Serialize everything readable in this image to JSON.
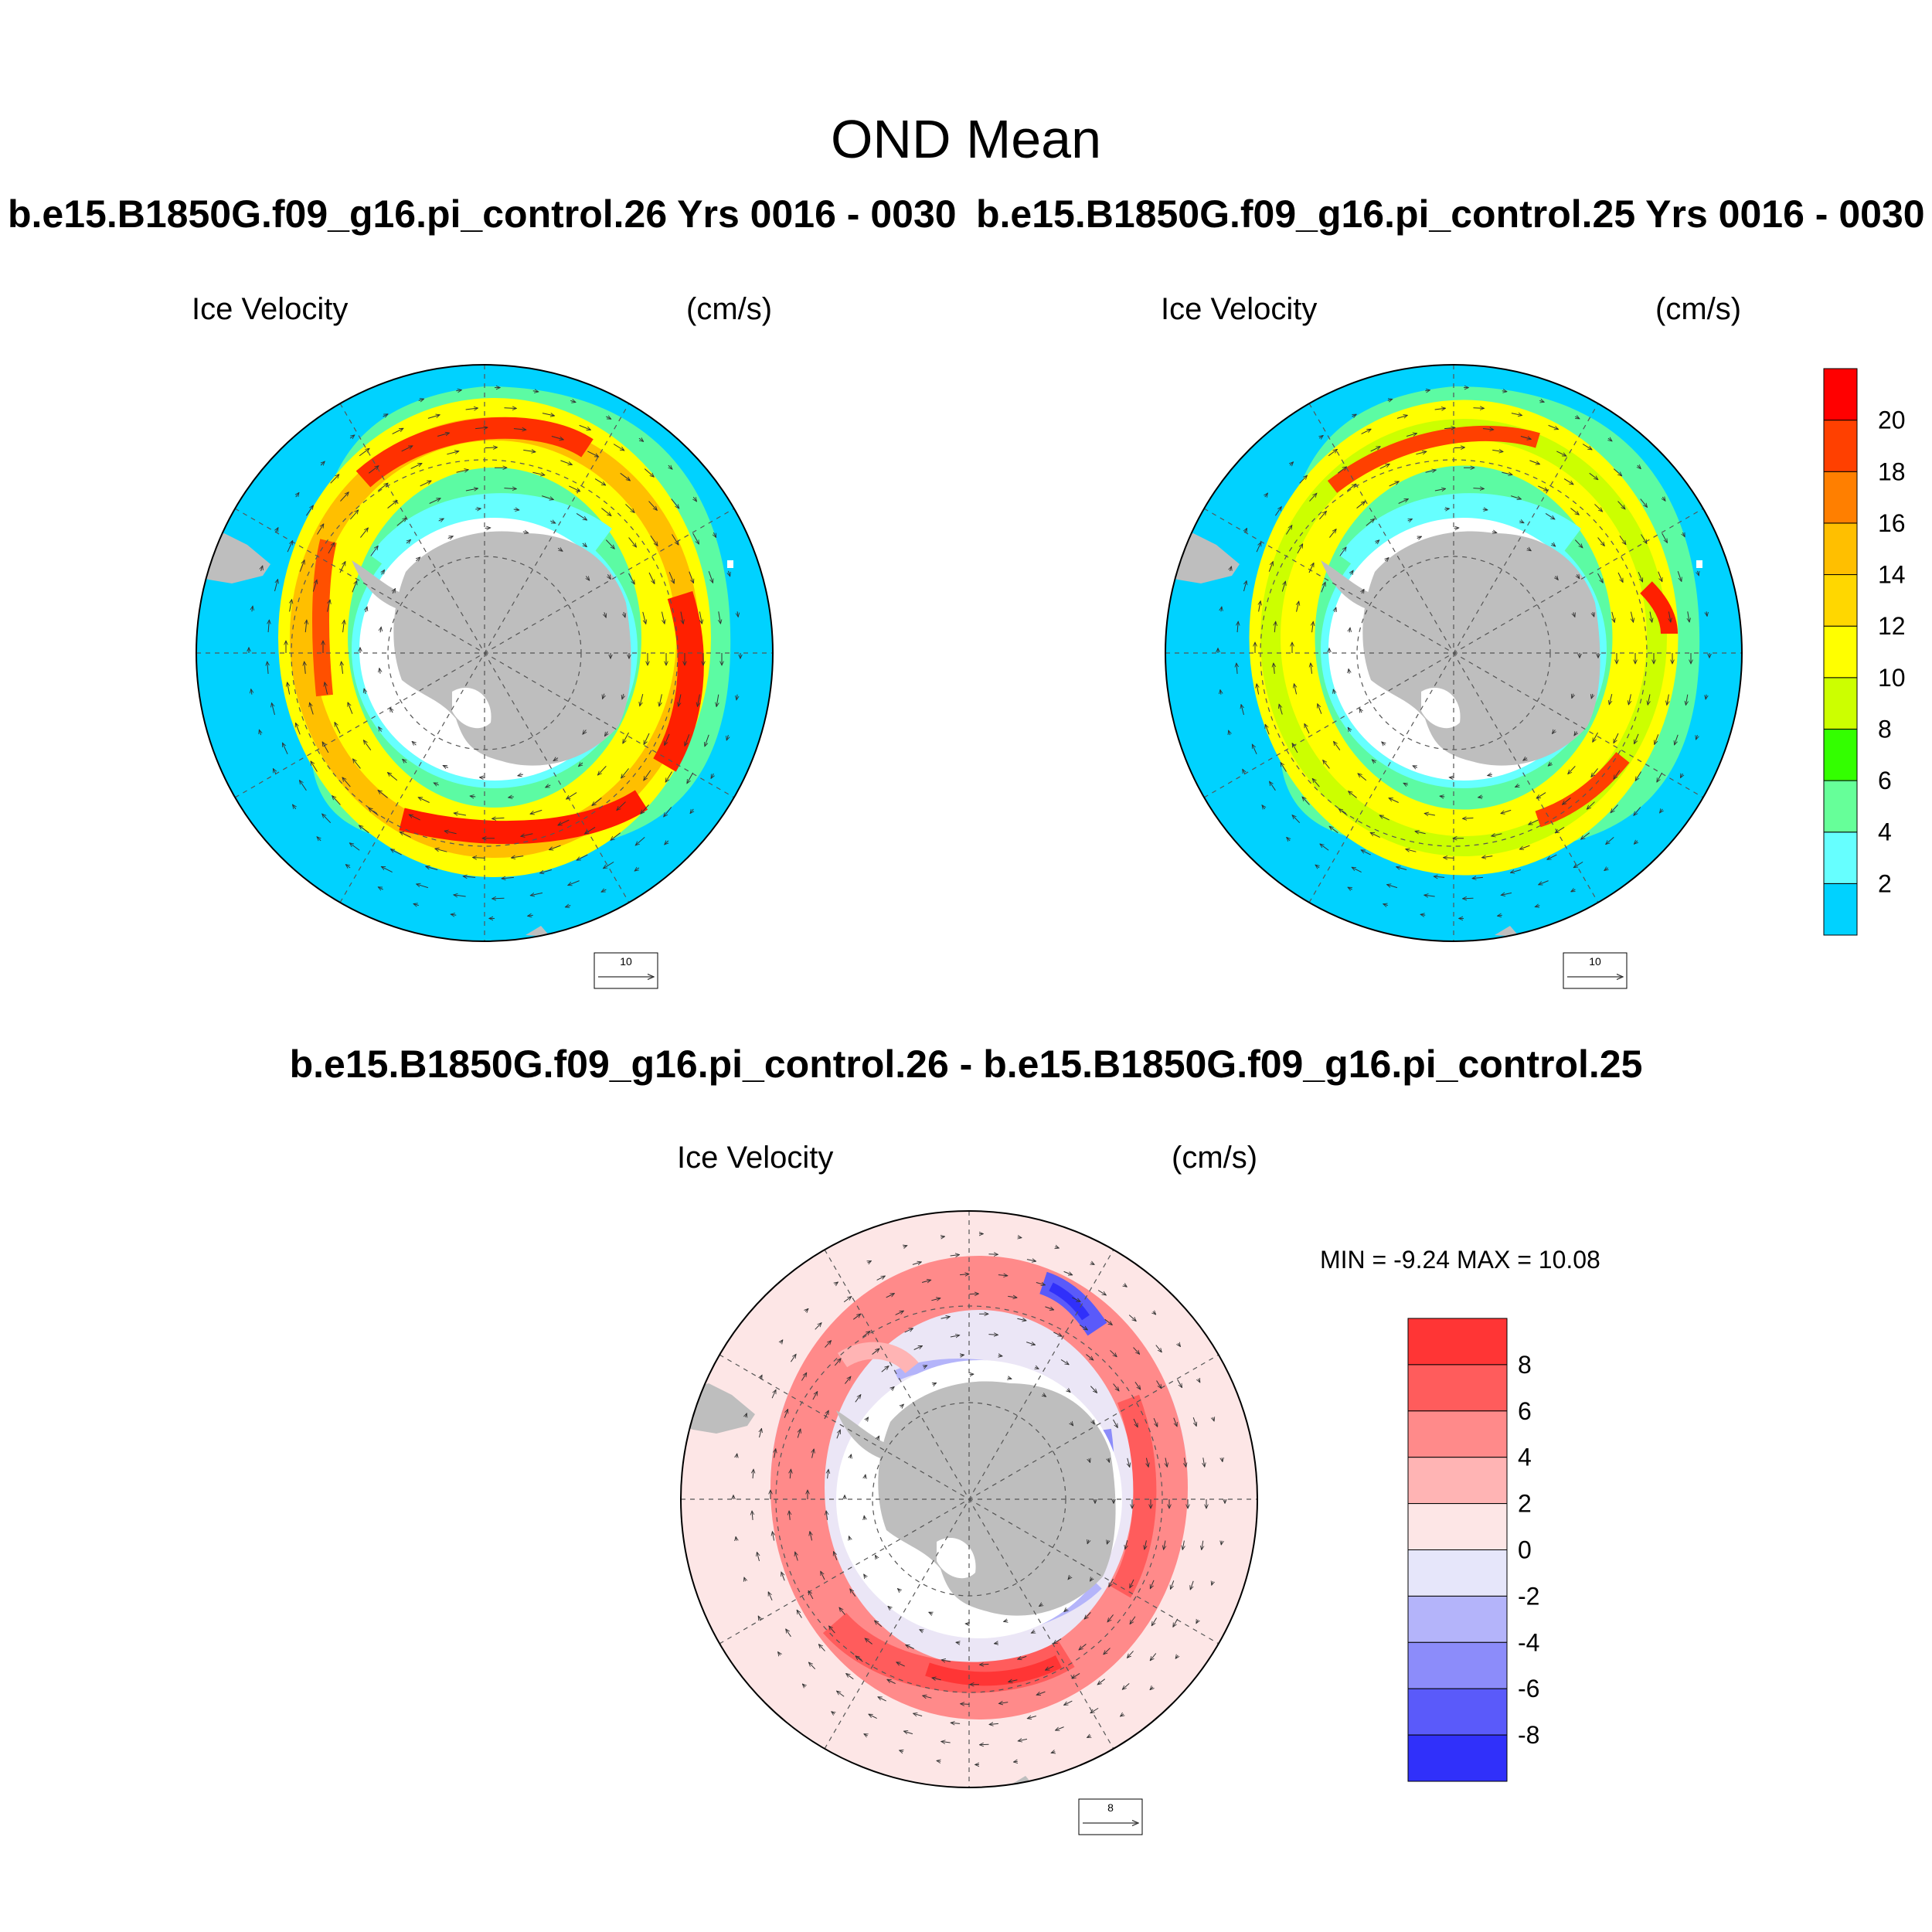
{
  "main_title": "OND Mean",
  "panels": [
    {
      "case_title": "b.e15.B1850G.f09_g16.pi_control.26  Yrs 0016 - 0030",
      "left_string": "Ice Velocity",
      "right_string": "(cm/s)",
      "ref_vector": "10"
    },
    {
      "case_title": "b.e15.B1850G.f09_g16.pi_control.25  Yrs 0016 - 0030",
      "left_string": "Ice Velocity",
      "right_string": "(cm/s)",
      "ref_vector": "10"
    },
    {
      "case_title": "b.e15.B1850G.f09_g16.pi_control.26 - b.e15.B1850G.f09_g16.pi_control.25",
      "left_string": "Ice Velocity",
      "right_string": "(cm/s)",
      "ref_vector": "8",
      "min_max": "MIN =  -9.24 MAX =  10.08"
    }
  ],
  "top_colorbar": {
    "labels": [
      "2",
      "4",
      "6",
      "8",
      "10",
      "12",
      "14",
      "16",
      "18",
      "20"
    ],
    "colors": [
      "#00d2ff",
      "#66ffff",
      "#66ff99",
      "#33ff00",
      "#ccff00",
      "#ffff00",
      "#ffd700",
      "#ffbf00",
      "#ff7f00",
      "#ff4000",
      "#ff0000"
    ]
  },
  "diff_colorbar": {
    "labels": [
      "8",
      "6",
      "4",
      "2",
      "0",
      "-2",
      "-4",
      "-6",
      "-8"
    ],
    "colors": [
      "#ff3535",
      "#ff5c5c",
      "#ff8a8a",
      "#ffb4b4",
      "#fde6e6",
      "#e6e6fa",
      "#b4b4fa",
      "#8c8cfa",
      "#5a5afa",
      "#3030fa"
    ]
  },
  "colors": {
    "ocean": "#00d2ff",
    "land": "#bebebe",
    "diff_bg": "#fde6e6"
  }
}
